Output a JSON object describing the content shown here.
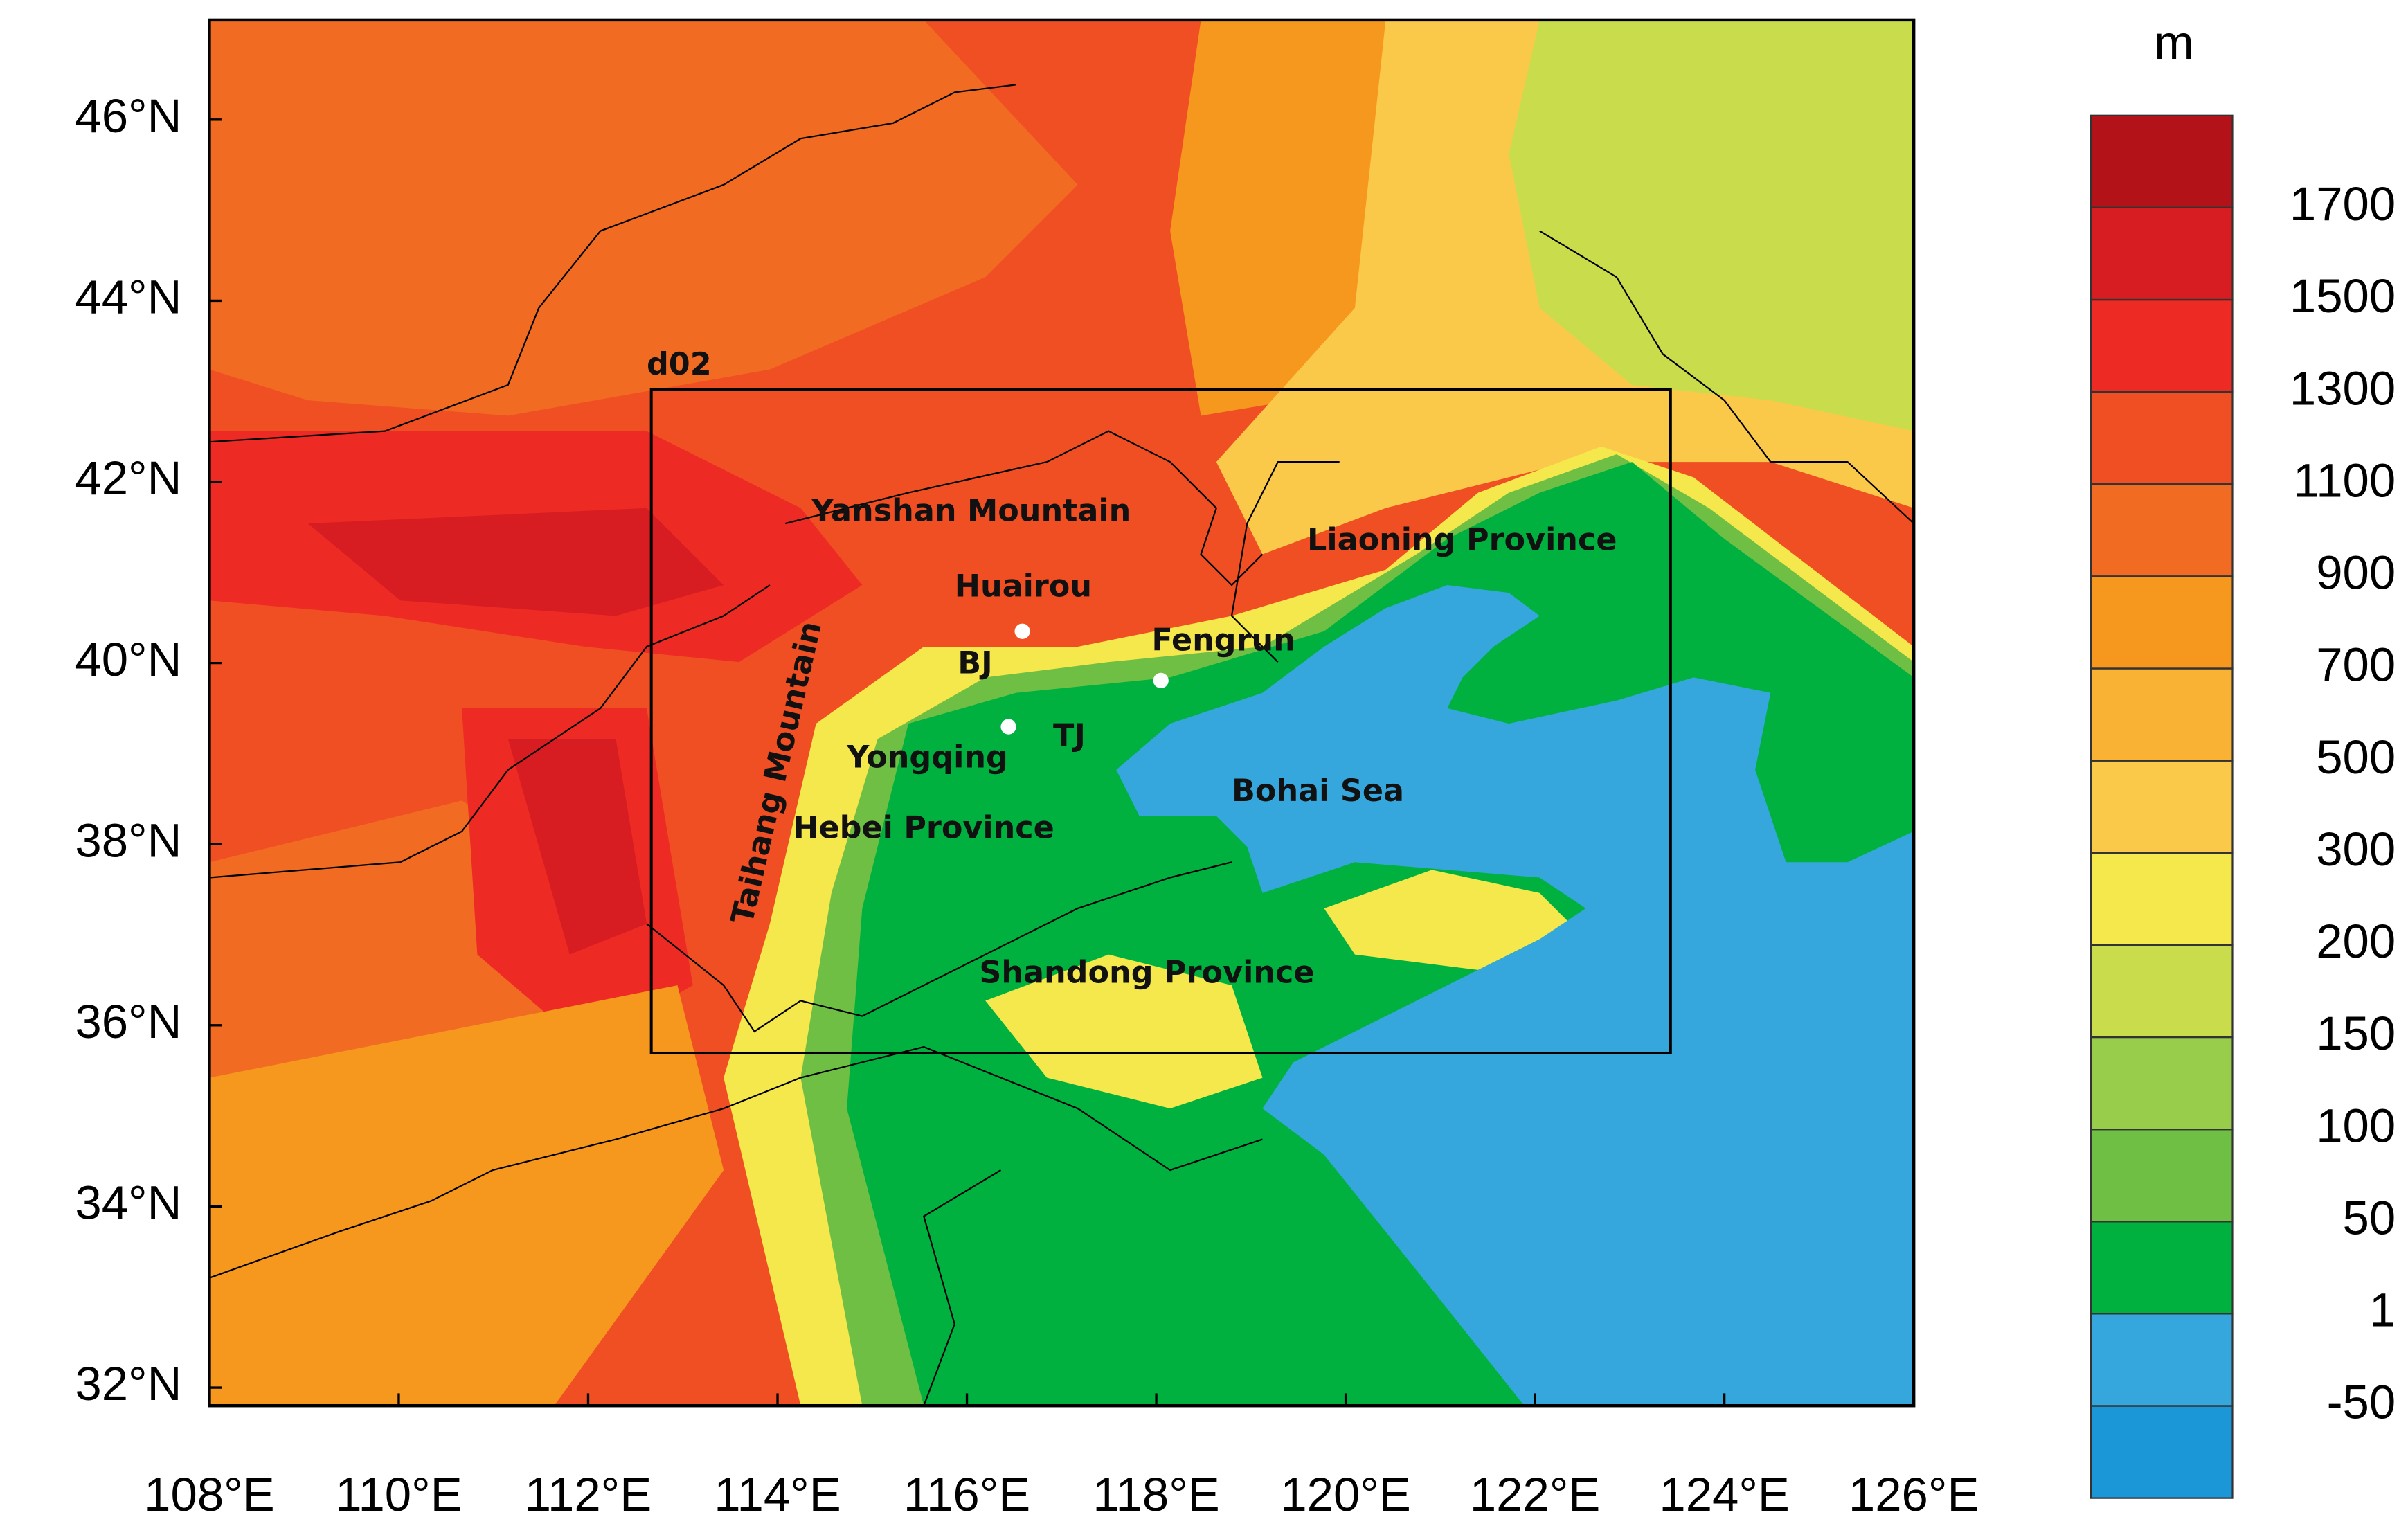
{
  "map": {
    "xlim": [
      108,
      126
    ],
    "ylim": [
      31.8,
      47.1
    ],
    "xticks": [
      {
        "value": 108,
        "label": "108°E"
      },
      {
        "value": 110,
        "label": "110°E"
      },
      {
        "value": 112,
        "label": "112°E"
      },
      {
        "value": 114,
        "label": "114°E"
      },
      {
        "value": 116,
        "label": "116°E"
      },
      {
        "value": 118,
        "label": "118°E"
      },
      {
        "value": 120,
        "label": "120°E"
      },
      {
        "value": 122,
        "label": "122°E"
      },
      {
        "value": 124,
        "label": "124°E"
      },
      {
        "value": 126,
        "label": "126°E"
      }
    ],
    "yticks": [
      {
        "value": 32,
        "label": "32°N"
      },
      {
        "value": 34,
        "label": "34°N"
      },
      {
        "value": 36,
        "label": "36°N"
      },
      {
        "value": 38,
        "label": "38°N"
      },
      {
        "value": 40,
        "label": "40°N"
      },
      {
        "value": 42,
        "label": "42°N"
      },
      {
        "value": 44,
        "label": "44°N"
      },
      {
        "value": 46,
        "label": "46°N"
      }
    ],
    "domain_label": "d02",
    "labels": [
      "Yanshan Mountain",
      "Liaoning  Province",
      "Huairou",
      "Fengrun",
      "BJ",
      "TJ",
      "Yongqing",
      "Bohai  Sea",
      "Hebei  Province",
      "Taihang Mountain",
      "Shandong  Province"
    ]
  },
  "colorbar": {
    "unit": "m",
    "levels": [
      -50,
      1,
      50,
      100,
      150,
      200,
      300,
      500,
      700,
      900,
      1100,
      1300,
      1500,
      1700
    ],
    "colors": [
      "#1b96d6",
      "#35a7dc",
      "#00b140",
      "#6fbf44",
      "#97cd4b",
      "#c9dc4c",
      "#f5e84c",
      "#fbc94a",
      "#f9b233",
      "#f7981e",
      "#f26b22",
      "#f04e23",
      "#ee2a24",
      "#d81d22",
      "#b31218"
    ]
  }
}
